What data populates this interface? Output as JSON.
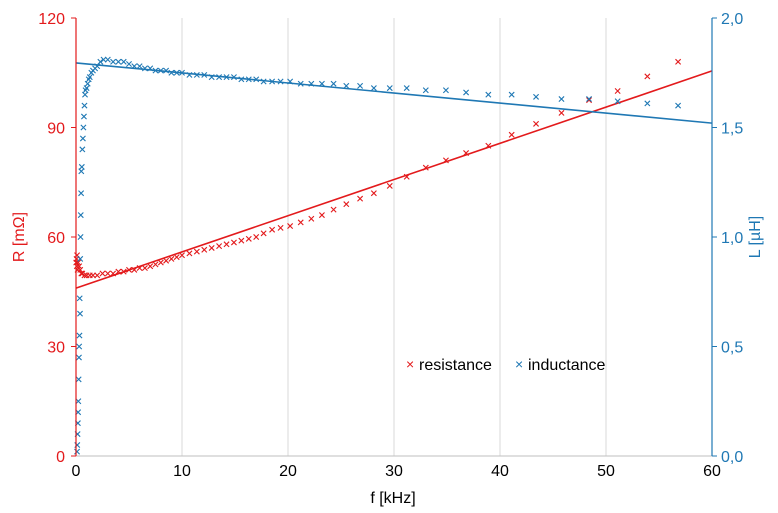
{
  "colors": {
    "resistance": "#e31a1c",
    "inductance": "#1f78b4",
    "grid": "#d9d9d9",
    "text": "#000000"
  },
  "chart_data": {
    "type": "scatter",
    "xlabel": "f [kHz]",
    "ylabel": "R [mΩ]",
    "y2label": "L [µH]",
    "xlim": [
      0,
      60
    ],
    "ylim": [
      0,
      120
    ],
    "y2lim": [
      0,
      2.0
    ],
    "xticks": [
      "0",
      "10",
      "20",
      "30",
      "40",
      "50",
      "60"
    ],
    "yticks": [
      "0",
      "30",
      "60",
      "90",
      "120"
    ],
    "y2ticks": [
      "0,0",
      "0,5",
      "1,0",
      "1,5",
      "2,0"
    ],
    "grid": "vertical",
    "legend": "inside, lower-center-right",
    "series": [
      {
        "name": "resistance",
        "axis": "left",
        "marker": "x",
        "x": [
          0.02,
          0.05,
          0.08,
          0.1,
          0.15,
          0.2,
          0.3,
          0.4,
          0.5,
          0.6,
          0.8,
          1.0,
          1.3,
          1.6,
          2.0,
          2.5,
          3.0,
          3.5,
          4.0,
          4.5,
          5.0,
          5.5,
          6.0,
          6.5,
          7.0,
          7.5,
          8.0,
          8.5,
          9.0,
          9.5,
          10.0,
          10.7,
          11.4,
          12.1,
          12.8,
          13.5,
          14.2,
          14.9,
          15.6,
          16.3,
          17.0,
          17.7,
          18.5,
          19.3,
          20.2,
          21.2,
          22.2,
          23.2,
          24.3,
          25.5,
          26.8,
          28.1,
          29.6,
          31.2,
          33.0,
          34.9,
          36.8,
          38.9,
          41.1,
          43.4,
          45.8,
          48.4,
          51.1,
          53.9,
          56.8
        ],
        "y": [
          53,
          54,
          52,
          55,
          51,
          53,
          52,
          51,
          50,
          50,
          49.5,
          49.5,
          49.5,
          49.5,
          49.5,
          50,
          50,
          50,
          50.5,
          50.5,
          51,
          51,
          51.5,
          51.5,
          52,
          52.5,
          53,
          53.5,
          54,
          54.5,
          55,
          55.5,
          56,
          56.5,
          57,
          57.5,
          58,
          58.5,
          59,
          59.5,
          60,
          61,
          62,
          62.5,
          63,
          64,
          65,
          66,
          67.5,
          69,
          70.5,
          72,
          74,
          76.5,
          79,
          81,
          83,
          85,
          88,
          91,
          94,
          97.5,
          100,
          104,
          108
        ]
      },
      {
        "name": "inductance",
        "axis": "right",
        "marker": "x",
        "x": [
          0.1,
          0.12,
          0.15,
          0.18,
          0.2,
          0.22,
          0.25,
          0.28,
          0.3,
          0.33,
          0.35,
          0.38,
          0.4,
          0.43,
          0.45,
          0.48,
          0.5,
          0.55,
          0.6,
          0.65,
          0.7,
          0.75,
          0.8,
          0.85,
          0.9,
          1.0,
          1.1,
          1.2,
          1.3,
          1.45,
          1.6,
          1.8,
          2.0,
          2.3,
          2.6,
          3.0,
          3.5,
          4.0,
          4.5,
          5.0,
          5.5,
          6.0,
          6.5,
          7.0,
          7.5,
          8.0,
          8.5,
          9.0,
          9.5,
          10.0,
          10.7,
          11.4,
          12.1,
          12.8,
          13.5,
          14.2,
          14.9,
          15.6,
          16.3,
          17.0,
          17.7,
          18.5,
          19.3,
          20.2,
          21.2,
          22.2,
          23.2,
          24.3,
          25.5,
          26.8,
          28.1,
          29.6,
          31.2,
          33.0,
          34.9,
          36.8,
          38.9,
          41.1,
          43.4,
          45.8,
          48.4,
          51.1,
          53.9,
          56.8
        ],
        "y": [
          0.02,
          0.05,
          0.1,
          0.15,
          0.2,
          0.25,
          0.35,
          0.45,
          0.5,
          0.55,
          0.72,
          0.65,
          0.9,
          1.0,
          1.1,
          1.2,
          1.3,
          1.32,
          1.4,
          1.45,
          1.5,
          1.55,
          1.6,
          1.65,
          1.67,
          1.68,
          1.7,
          1.72,
          1.73,
          1.75,
          1.76,
          1.77,
          1.78,
          1.8,
          1.81,
          1.81,
          1.8,
          1.8,
          1.8,
          1.79,
          1.78,
          1.78,
          1.77,
          1.77,
          1.76,
          1.76,
          1.76,
          1.75,
          1.75,
          1.75,
          1.74,
          1.74,
          1.74,
          1.73,
          1.73,
          1.73,
          1.73,
          1.72,
          1.72,
          1.72,
          1.71,
          1.71,
          1.71,
          1.71,
          1.7,
          1.7,
          1.7,
          1.7,
          1.69,
          1.69,
          1.68,
          1.68,
          1.68,
          1.67,
          1.67,
          1.66,
          1.65,
          1.65,
          1.64,
          1.63,
          1.63,
          1.62,
          1.61,
          1.6
        ]
      }
    ],
    "trendlines": [
      {
        "series": "resistance",
        "axis": "left",
        "x": [
          0,
          60
        ],
        "y": [
          46,
          105.5
        ]
      },
      {
        "series": "inductance",
        "axis": "right",
        "x": [
          0,
          60
        ],
        "y": [
          1.795,
          1.52
        ]
      }
    ]
  }
}
